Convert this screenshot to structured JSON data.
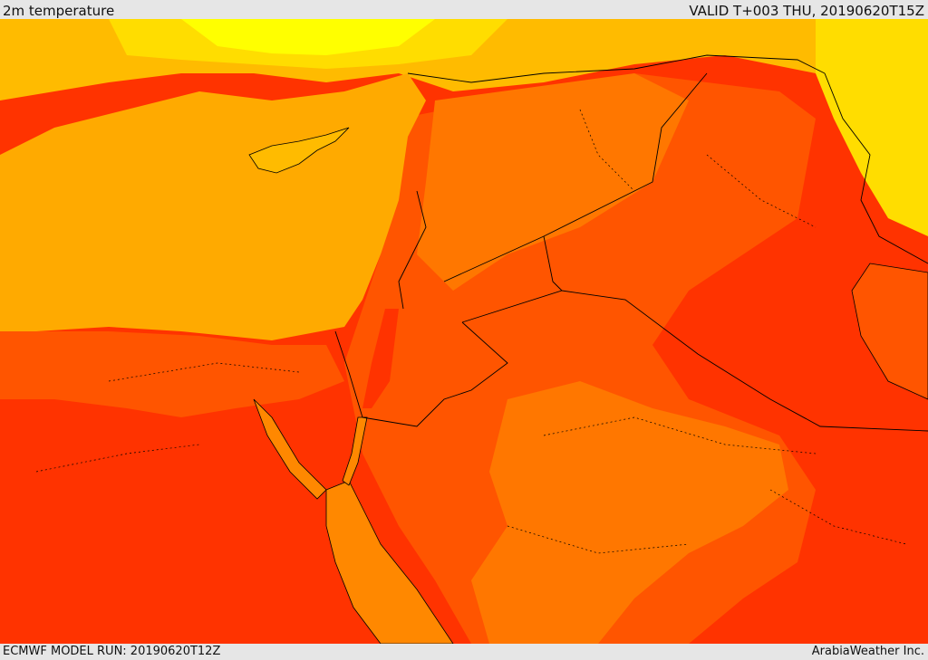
{
  "header": {
    "title": "2m temperature",
    "valid": "VALID T+003 THU, 20190620T15Z"
  },
  "footer": {
    "model_run": "ECMWF MODEL RUN: 20190620T12Z",
    "credit": "ArabiaWeather Inc."
  },
  "palette": {
    "sea": "#ffaa00",
    "sea_warm": "#ff8800",
    "yellow": "#ffff00",
    "yellow_orange": "#ffdd00",
    "orange_light": "#ffbb00",
    "orange": "#ff7700",
    "orange_red": "#ff5500",
    "red": "#ff3300",
    "deep_red": "#ff1a00",
    "border": "#000000"
  }
}
